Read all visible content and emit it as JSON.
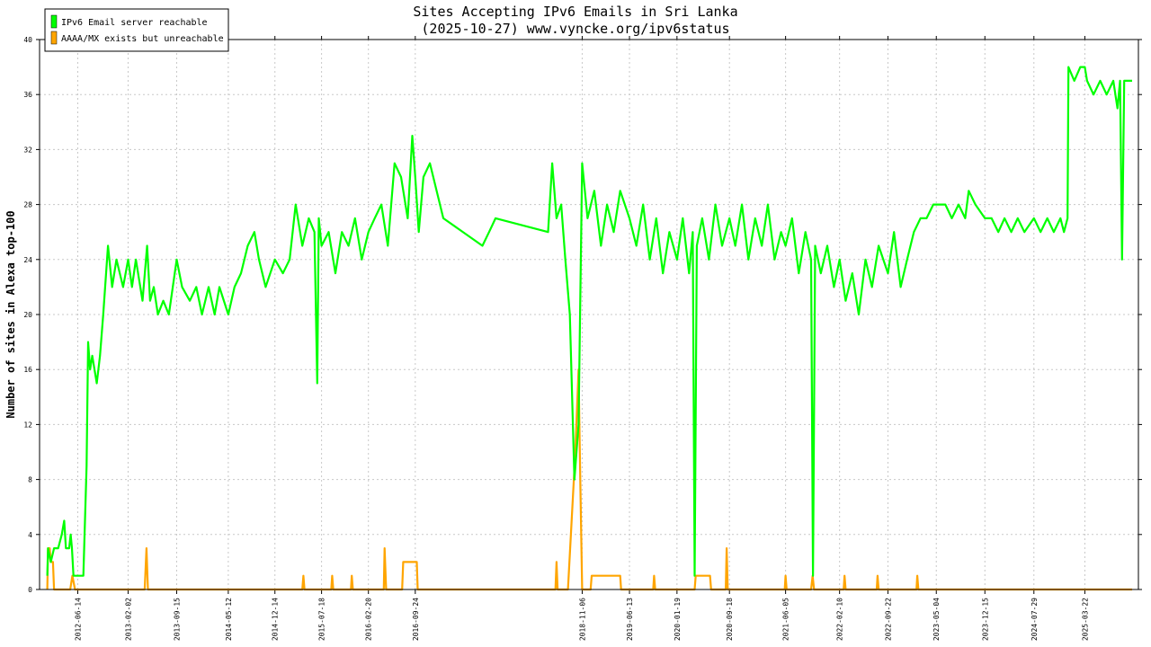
{
  "chart_data": {
    "type": "line",
    "title": "Sites Accepting IPv6 Emails in Sri Lanka",
    "subtitle": "(2025-10-27) www.vyncke.org/ipv6status",
    "ylabel": "Number of sites in Alexa top-100",
    "xlabel": "",
    "ylim": [
      0,
      40
    ],
    "yticks": [
      0,
      4,
      8,
      12,
      16,
      20,
      24,
      28,
      32,
      36,
      40
    ],
    "x_type": "date",
    "xlim": [
      "2011-12-20",
      "2025-11-25"
    ],
    "xticks": [
      "2012-06-14",
      "2013-02-02",
      "2013-09-15",
      "2014-05-12",
      "2014-12-14",
      "2015-07-18",
      "2016-02-20",
      "2016-09-24",
      "2018-11-06",
      "2019-06-13",
      "2020-01-19",
      "2020-09-18",
      "2021-06-05",
      "2022-02-10",
      "2022-09-22",
      "2023-05-04",
      "2023-12-15",
      "2024-07-29",
      "2025-03-22"
    ],
    "grid": true,
    "legend_position": "top-left",
    "series": [
      {
        "name": "IPv6 Email server reachable",
        "color": "#00ff00",
        "points": [
          [
            "2012-01-25",
            1
          ],
          [
            "2012-01-28",
            3
          ],
          [
            "2012-02-10",
            2
          ],
          [
            "2012-02-25",
            3
          ],
          [
            "2012-03-15",
            3
          ],
          [
            "2012-04-01",
            4
          ],
          [
            "2012-04-12",
            5
          ],
          [
            "2012-04-20",
            3
          ],
          [
            "2012-05-05",
            3
          ],
          [
            "2012-05-12",
            4
          ],
          [
            "2012-05-18",
            3
          ],
          [
            "2012-05-25",
            1
          ],
          [
            "2012-06-10",
            1
          ],
          [
            "2012-07-10",
            1
          ],
          [
            "2012-07-25",
            9
          ],
          [
            "2012-08-01",
            18
          ],
          [
            "2012-08-10",
            16
          ],
          [
            "2012-08-20",
            17
          ],
          [
            "2012-09-10",
            15
          ],
          [
            "2012-09-25",
            17
          ],
          [
            "2012-10-10",
            20
          ],
          [
            "2012-11-01",
            25
          ],
          [
            "2012-11-20",
            22
          ],
          [
            "2012-12-10",
            24
          ],
          [
            "2013-01-10",
            22
          ],
          [
            "2013-02-02",
            24
          ],
          [
            "2013-02-20",
            22
          ],
          [
            "2013-03-10",
            24
          ],
          [
            "2013-04-10",
            21
          ],
          [
            "2013-05-01",
            25
          ],
          [
            "2013-05-15",
            21
          ],
          [
            "2013-06-01",
            22
          ],
          [
            "2013-06-20",
            20
          ],
          [
            "2013-07-15",
            21
          ],
          [
            "2013-08-10",
            20
          ],
          [
            "2013-09-15",
            24
          ],
          [
            "2013-10-10",
            22
          ],
          [
            "2013-11-15",
            21
          ],
          [
            "2013-12-15",
            22
          ],
          [
            "2014-01-10",
            20
          ],
          [
            "2014-02-10",
            22
          ],
          [
            "2014-03-10",
            20
          ],
          [
            "2014-04-01",
            22
          ],
          [
            "2014-05-12",
            20
          ],
          [
            "2014-06-10",
            22
          ],
          [
            "2014-07-10",
            23
          ],
          [
            "2014-08-10",
            25
          ],
          [
            "2014-09-10",
            26
          ],
          [
            "2014-10-01",
            24
          ],
          [
            "2014-11-01",
            22
          ],
          [
            "2014-12-14",
            24
          ],
          [
            "2015-01-20",
            23
          ],
          [
            "2015-02-20",
            24
          ],
          [
            "2015-03-20",
            28
          ],
          [
            "2015-04-20",
            25
          ],
          [
            "2015-05-20",
            27
          ],
          [
            "2015-06-15",
            26
          ],
          [
            "2015-06-28",
            15
          ],
          [
            "2015-07-05",
            27
          ],
          [
            "2015-07-18",
            25
          ],
          [
            "2015-08-20",
            26
          ],
          [
            "2015-09-20",
            23
          ],
          [
            "2015-10-20",
            26
          ],
          [
            "2015-11-20",
            25
          ],
          [
            "2015-12-20",
            27
          ],
          [
            "2016-01-20",
            24
          ],
          [
            "2016-02-20",
            26
          ],
          [
            "2016-03-20",
            27
          ],
          [
            "2016-04-20",
            28
          ],
          [
            "2016-05-20",
            25
          ],
          [
            "2016-06-20",
            31
          ],
          [
            "2016-07-20",
            30
          ],
          [
            "2016-08-20",
            27
          ],
          [
            "2016-09-10",
            33
          ],
          [
            "2016-09-24",
            30
          ],
          [
            "2016-10-10",
            26
          ],
          [
            "2016-11-01",
            30
          ],
          [
            "2016-12-01",
            31
          ],
          [
            "2017-02-01",
            27
          ],
          [
            "2017-08-01",
            25
          ],
          [
            "2017-09-01",
            26
          ],
          [
            "2017-10-01",
            27
          ],
          [
            "2018-06-01",
            26
          ],
          [
            "2018-06-20",
            31
          ],
          [
            "2018-07-10",
            27
          ],
          [
            "2018-08-01",
            28
          ],
          [
            "2018-08-20",
            24
          ],
          [
            "2018-09-10",
            20
          ],
          [
            "2018-10-01",
            8
          ],
          [
            "2018-10-20",
            12
          ],
          [
            "2018-11-06",
            31
          ],
          [
            "2018-12-01",
            27
          ],
          [
            "2019-01-01",
            29
          ],
          [
            "2019-02-01",
            25
          ],
          [
            "2019-03-01",
            28
          ],
          [
            "2019-04-01",
            26
          ],
          [
            "2019-05-01",
            29
          ],
          [
            "2019-06-13",
            27
          ],
          [
            "2019-07-15",
            25
          ],
          [
            "2019-08-15",
            28
          ],
          [
            "2019-09-15",
            24
          ],
          [
            "2019-10-15",
            27
          ],
          [
            "2019-11-15",
            23
          ],
          [
            "2019-12-15",
            26
          ],
          [
            "2020-01-19",
            24
          ],
          [
            "2020-02-15",
            27
          ],
          [
            "2020-03-15",
            23
          ],
          [
            "2020-04-01",
            26
          ],
          [
            "2020-04-10",
            1
          ],
          [
            "2020-04-20",
            25
          ],
          [
            "2020-05-15",
            27
          ],
          [
            "2020-06-15",
            24
          ],
          [
            "2020-07-15",
            28
          ],
          [
            "2020-08-15",
            25
          ],
          [
            "2020-09-18",
            27
          ],
          [
            "2020-10-15",
            25
          ],
          [
            "2020-11-15",
            28
          ],
          [
            "2020-12-15",
            24
          ],
          [
            "2021-01-15",
            27
          ],
          [
            "2021-02-15",
            25
          ],
          [
            "2021-03-15",
            28
          ],
          [
            "2021-04-15",
            24
          ],
          [
            "2021-05-15",
            26
          ],
          [
            "2021-06-05",
            25
          ],
          [
            "2021-07-05",
            27
          ],
          [
            "2021-08-05",
            23
          ],
          [
            "2021-09-05",
            26
          ],
          [
            "2021-10-01",
            24
          ],
          [
            "2021-10-10",
            1
          ],
          [
            "2021-10-20",
            25
          ],
          [
            "2021-11-15",
            23
          ],
          [
            "2021-12-15",
            25
          ],
          [
            "2022-01-15",
            22
          ],
          [
            "2022-02-10",
            24
          ],
          [
            "2022-03-10",
            21
          ],
          [
            "2022-04-10",
            23
          ],
          [
            "2022-05-10",
            20
          ],
          [
            "2022-06-10",
            24
          ],
          [
            "2022-07-10",
            22
          ],
          [
            "2022-08-10",
            25
          ],
          [
            "2022-09-22",
            23
          ],
          [
            "2022-10-20",
            26
          ],
          [
            "2022-11-20",
            22
          ],
          [
            "2022-12-20",
            24
          ],
          [
            "2023-01-20",
            26
          ],
          [
            "2023-02-20",
            27
          ],
          [
            "2023-03-20",
            27
          ],
          [
            "2023-04-20",
            28
          ],
          [
            "2023-05-04",
            28
          ],
          [
            "2023-06-15",
            28
          ],
          [
            "2023-07-15",
            27
          ],
          [
            "2023-08-15",
            28
          ],
          [
            "2023-09-15",
            27
          ],
          [
            "2023-10-01",
            29
          ],
          [
            "2023-11-01",
            28
          ],
          [
            "2023-12-15",
            27
          ],
          [
            "2024-01-15",
            27
          ],
          [
            "2024-02-15",
            26
          ],
          [
            "2024-03-15",
            27
          ],
          [
            "2024-04-15",
            26
          ],
          [
            "2024-05-15",
            27
          ],
          [
            "2024-06-15",
            26
          ],
          [
            "2024-07-29",
            27
          ],
          [
            "2024-08-29",
            26
          ],
          [
            "2024-09-29",
            27
          ],
          [
            "2024-10-29",
            26
          ],
          [
            "2024-11-29",
            27
          ],
          [
            "2024-12-15",
            26
          ],
          [
            "2025-01-01",
            27
          ],
          [
            "2025-01-05",
            38
          ],
          [
            "2025-02-01",
            37
          ],
          [
            "2025-03-01",
            38
          ],
          [
            "2025-03-22",
            38
          ],
          [
            "2025-04-01",
            37
          ],
          [
            "2025-05-01",
            36
          ],
          [
            "2025-06-01",
            37
          ],
          [
            "2025-07-01",
            36
          ],
          [
            "2025-08-01",
            37
          ],
          [
            "2025-08-20",
            35
          ],
          [
            "2025-09-01",
            37
          ],
          [
            "2025-09-10",
            24
          ],
          [
            "2025-09-20",
            37
          ],
          [
            "2025-10-27",
            37
          ]
        ]
      },
      {
        "name": "AAAA/MX exists but unreachable",
        "color": "#ffa500",
        "points": [
          [
            "2012-01-25",
            0
          ],
          [
            "2012-01-28",
            3
          ],
          [
            "2012-02-05",
            3
          ],
          [
            "2012-02-10",
            2
          ],
          [
            "2012-02-20",
            2
          ],
          [
            "2012-02-25",
            0
          ],
          [
            "2012-05-10",
            0
          ],
          [
            "2012-05-20",
            1
          ],
          [
            "2012-06-01",
            0
          ],
          [
            "2013-04-20",
            0
          ],
          [
            "2013-04-28",
            3
          ],
          [
            "2013-05-05",
            0
          ],
          [
            "2015-04-20",
            0
          ],
          [
            "2015-04-25",
            1
          ],
          [
            "2015-04-30",
            0
          ],
          [
            "2015-09-01",
            0
          ],
          [
            "2015-09-05",
            1
          ],
          [
            "2015-09-10",
            0
          ],
          [
            "2015-12-01",
            0
          ],
          [
            "2015-12-05",
            1
          ],
          [
            "2015-12-10",
            0
          ],
          [
            "2016-05-01",
            0
          ],
          [
            "2016-05-05",
            3
          ],
          [
            "2016-05-12",
            0
          ],
          [
            "2016-07-25",
            0
          ],
          [
            "2016-07-30",
            2
          ],
          [
            "2016-10-01",
            2
          ],
          [
            "2016-10-05",
            0
          ],
          [
            "2018-07-05",
            0
          ],
          [
            "2018-07-10",
            2
          ],
          [
            "2018-07-15",
            0
          ],
          [
            "2018-09-01",
            0
          ],
          [
            "2018-10-05",
            10
          ],
          [
            "2018-10-20",
            16
          ],
          [
            "2018-10-28",
            8
          ],
          [
            "2018-11-06",
            0
          ],
          [
            "2018-12-15",
            0
          ],
          [
            "2018-12-20",
            1
          ],
          [
            "2019-05-01",
            1
          ],
          [
            "2019-05-05",
            0
          ],
          [
            "2019-10-01",
            0
          ],
          [
            "2019-10-05",
            1
          ],
          [
            "2019-10-10",
            0
          ],
          [
            "2020-04-10",
            0
          ],
          [
            "2020-04-15",
            1
          ],
          [
            "2020-06-20",
            1
          ],
          [
            "2020-06-25",
            0
          ],
          [
            "2020-09-01",
            0
          ],
          [
            "2020-09-05",
            3
          ],
          [
            "2020-09-10",
            0
          ],
          [
            "2021-06-01",
            0
          ],
          [
            "2021-06-05",
            1
          ],
          [
            "2021-06-10",
            0
          ],
          [
            "2021-10-01",
            0
          ],
          [
            "2021-10-08",
            1
          ],
          [
            "2021-10-15",
            0
          ],
          [
            "2022-03-01",
            0
          ],
          [
            "2022-03-05",
            1
          ],
          [
            "2022-03-10",
            0
          ],
          [
            "2022-08-01",
            0
          ],
          [
            "2022-08-05",
            1
          ],
          [
            "2022-08-10",
            0
          ],
          [
            "2023-02-01",
            0
          ],
          [
            "2023-02-05",
            1
          ],
          [
            "2023-02-10",
            0
          ],
          [
            "2025-10-27",
            0
          ]
        ]
      }
    ]
  }
}
